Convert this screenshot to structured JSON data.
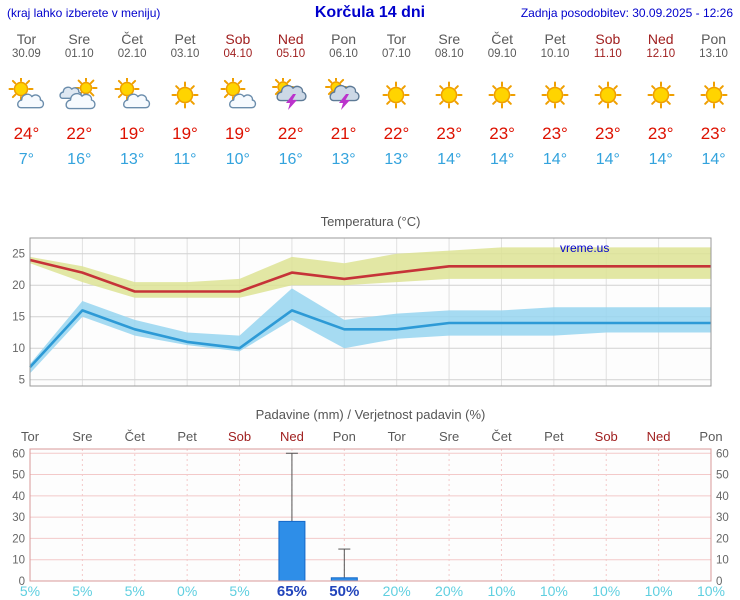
{
  "header": {
    "menu_hint": "(kraj lahko izberete v meniju)",
    "title": "Korčula 14 dni",
    "last_update": "Zadnja posodobitev: 30.09.2025 - 12:26"
  },
  "colors": {
    "header_text": "#0000cc",
    "weekday_text": "#5a5a5a",
    "weekend_text": "#a02020",
    "temp_max_text": "#dd1100",
    "temp_min_text": "#33a3dd",
    "prob_low": "#5fcfe0",
    "prob_high": "#2244bb",
    "watermark": "#0000cc"
  },
  "days": [
    {
      "name": "Tor",
      "date": "30.09",
      "weekend": false,
      "icon": "partly-cloudy",
      "tmax": "24°",
      "tmin": "7°",
      "prob": "5%",
      "prob_high": false
    },
    {
      "name": "Sre",
      "date": "01.10",
      "weekend": false,
      "icon": "mostly-cloudy",
      "tmax": "22°",
      "tmin": "16°",
      "prob": "5%",
      "prob_high": false
    },
    {
      "name": "Čet",
      "date": "02.10",
      "weekend": false,
      "icon": "partly-cloudy",
      "tmax": "19°",
      "tmin": "13°",
      "prob": "5%",
      "prob_high": false
    },
    {
      "name": "Pet",
      "date": "03.10",
      "weekend": false,
      "icon": "sunny",
      "tmax": "19°",
      "tmin": "11°",
      "prob": "0%",
      "prob_high": false
    },
    {
      "name": "Sob",
      "date": "04.10",
      "weekend": true,
      "icon": "partly-cloudy",
      "tmax": "19°",
      "tmin": "10°",
      "prob": "5%",
      "prob_high": false
    },
    {
      "name": "Ned",
      "date": "05.10",
      "weekend": true,
      "icon": "thunderstorm",
      "tmax": "22°",
      "tmin": "16°",
      "prob": "65%",
      "prob_high": true
    },
    {
      "name": "Pon",
      "date": "06.10",
      "weekend": false,
      "icon": "thunderstorm",
      "tmax": "21°",
      "tmin": "13°",
      "prob": "50%",
      "prob_high": true
    },
    {
      "name": "Tor",
      "date": "07.10",
      "weekend": false,
      "icon": "sunny",
      "tmax": "22°",
      "tmin": "13°",
      "prob": "20%",
      "prob_high": false
    },
    {
      "name": "Sre",
      "date": "08.10",
      "weekend": false,
      "icon": "sunny",
      "tmax": "23°",
      "tmin": "14°",
      "prob": "20%",
      "prob_high": false
    },
    {
      "name": "Čet",
      "date": "09.10",
      "weekend": false,
      "icon": "sunny",
      "tmax": "23°",
      "tmin": "14°",
      "prob": "10%",
      "prob_high": false
    },
    {
      "name": "Pet",
      "date": "10.10",
      "weekend": false,
      "icon": "sunny",
      "tmax": "23°",
      "tmin": "14°",
      "prob": "10%",
      "prob_high": false
    },
    {
      "name": "Sob",
      "date": "11.10",
      "weekend": true,
      "icon": "sunny",
      "tmax": "23°",
      "tmin": "14°",
      "prob": "10%",
      "prob_high": false
    },
    {
      "name": "Ned",
      "date": "12.10",
      "weekend": true,
      "icon": "sunny",
      "tmax": "23°",
      "tmin": "14°",
      "prob": "10%",
      "prob_high": false
    },
    {
      "name": "Pon",
      "date": "13.10",
      "weekend": false,
      "icon": "sunny",
      "tmax": "23°",
      "tmin": "14°",
      "prob": "10%",
      "prob_high": false
    }
  ],
  "chart_data": [
    {
      "type": "line",
      "title": "Temperatura (°C)",
      "watermark": "vreme.us",
      "x_labels": [
        "Tor",
        "Sre",
        "Čet",
        "Pet",
        "Sob",
        "Ned",
        "Pon",
        "Tor",
        "Sre",
        "Čet",
        "Pet",
        "Sob",
        "Ned",
        "Pon"
      ],
      "ylim": [
        4,
        27.5
      ],
      "yticks": [
        5,
        10,
        15,
        20,
        25
      ],
      "grid": true,
      "legend_position": "none",
      "series": [
        {
          "name": "max-temperature",
          "color": "#c63338",
          "band_color": "#dde394",
          "values": [
            24,
            22,
            19,
            19,
            19,
            22,
            21,
            22,
            23,
            23,
            23,
            23,
            23,
            23
          ],
          "band_upper": [
            24.5,
            23,
            20.5,
            20.5,
            21,
            24.5,
            23.5,
            25,
            25.5,
            26,
            26,
            26,
            26,
            26
          ],
          "band_lower": [
            23.5,
            20.5,
            18,
            18,
            18,
            20,
            20,
            20.5,
            21,
            21,
            21,
            21,
            21,
            21
          ]
        },
        {
          "name": "min-temperature",
          "color": "#2d9ad6",
          "band_color": "#96d5f0",
          "values": [
            7,
            16,
            13,
            11,
            10,
            16,
            13,
            13,
            14,
            14,
            14,
            14,
            14,
            14
          ],
          "band_upper": [
            7.5,
            17.5,
            14.5,
            12.5,
            12,
            19.5,
            14.5,
            15.5,
            16,
            16,
            16.5,
            16.5,
            16.5,
            16.5
          ],
          "band_lower": [
            6,
            15,
            12,
            10.5,
            9.5,
            14.5,
            10,
            11.5,
            12,
            12,
            12,
            12.5,
            12.5,
            12.5
          ]
        }
      ]
    },
    {
      "type": "bar",
      "title": "Padavine (mm) / Verjetnost padavin (%)",
      "categories": [
        "Tor",
        "Sre",
        "Čet",
        "Pet",
        "Sob",
        "Ned",
        "Pon",
        "Tor",
        "Sre",
        "Čet",
        "Pet",
        "Sob",
        "Ned",
        "Pon"
      ],
      "values": [
        0,
        0,
        0,
        0,
        0,
        28,
        1.5,
        0,
        0,
        0,
        0,
        0,
        0,
        0
      ],
      "whisker_max_mm": [
        0,
        0,
        0,
        0,
        0,
        60,
        15,
        0,
        0,
        0,
        0,
        0,
        0,
        0
      ],
      "probabilities": [
        "5%",
        "5%",
        "5%",
        "0%",
        "5%",
        "65%",
        "50%",
        "20%",
        "20%",
        "10%",
        "10%",
        "10%",
        "10%",
        "10%"
      ],
      "ylim": [
        0,
        62
      ],
      "yticks": [
        0,
        10,
        20,
        30,
        40,
        50,
        60
      ],
      "bar_color": "#2e8ee8"
    }
  ]
}
